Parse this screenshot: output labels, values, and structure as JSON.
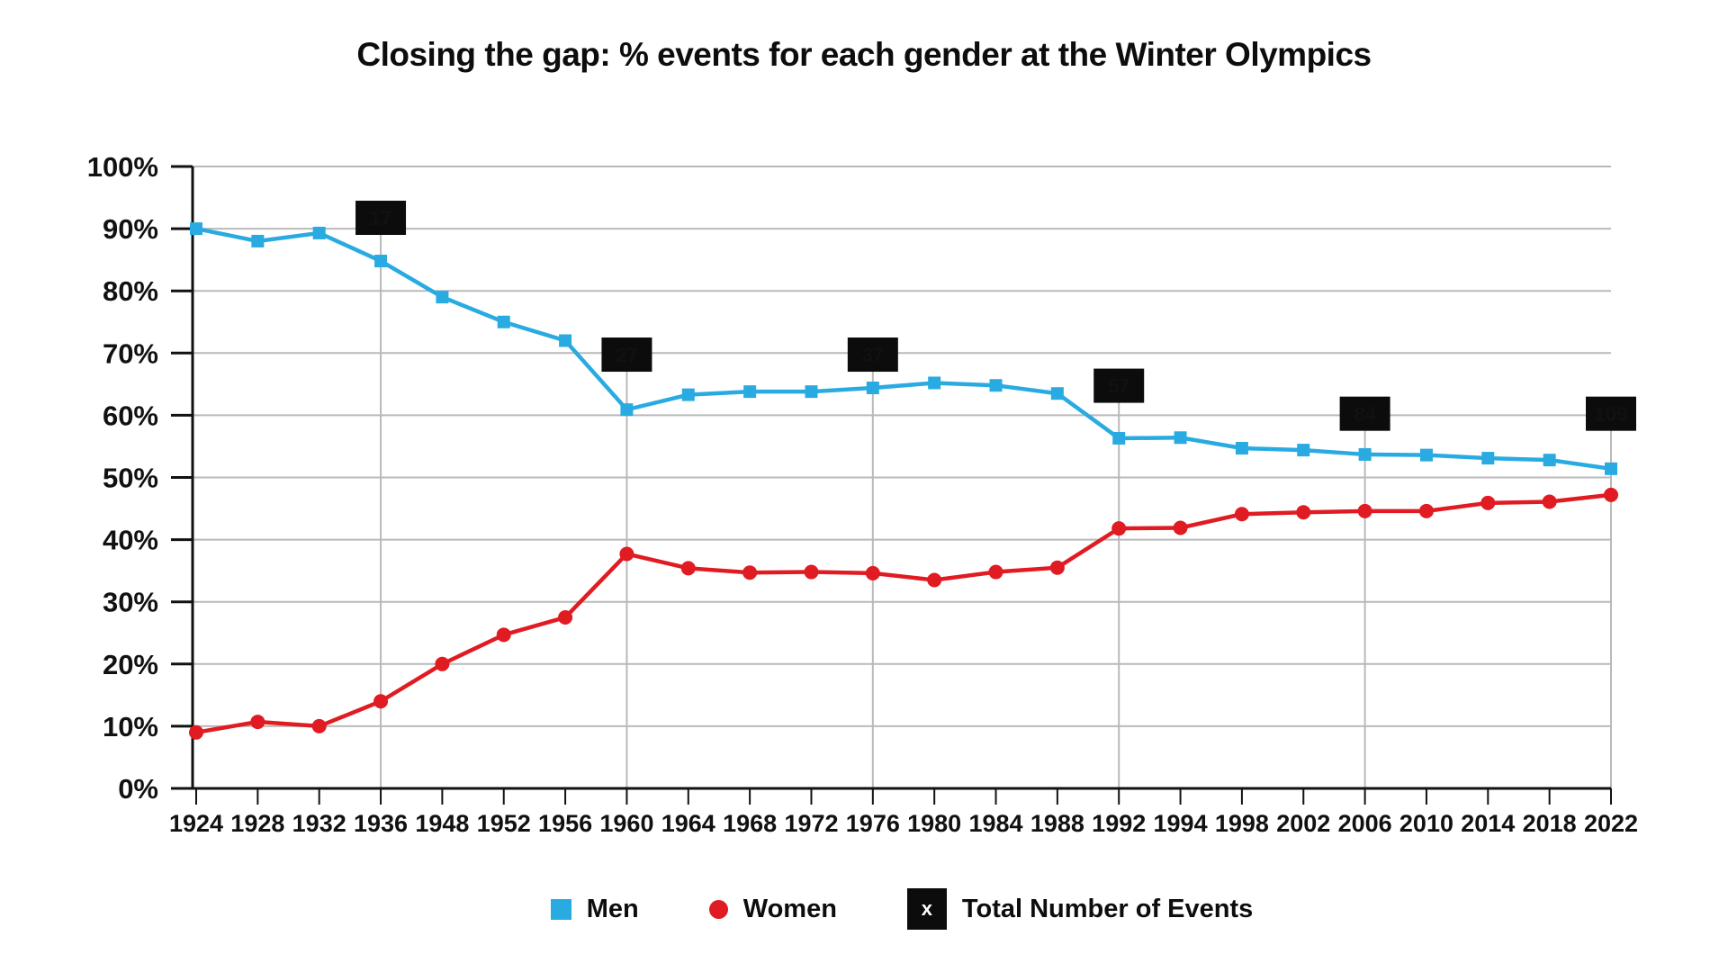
{
  "title": "Closing the gap: % events for each gender at the Winter Olympics",
  "legend": {
    "men_label": "Men",
    "women_label": "Women",
    "total_label": "Total Number of Events",
    "total_symbol": "x"
  },
  "colors": {
    "men": "#29ABE2",
    "women": "#E01B22",
    "annotation_bg": "#0c0c0c",
    "annotation_text": "#ffffff",
    "grid": "#b9b9b9",
    "axis": "#111111"
  },
  "chart_data": {
    "type": "line",
    "x": [
      1924,
      1928,
      1932,
      1936,
      1948,
      1952,
      1956,
      1960,
      1964,
      1968,
      1972,
      1976,
      1980,
      1984,
      1988,
      1992,
      1994,
      1998,
      2002,
      2006,
      2010,
      2014,
      2018,
      2022
    ],
    "series": [
      {
        "name": "Men",
        "marker": "square",
        "color": "#29ABE2",
        "values": [
          90.0,
          88.0,
          89.3,
          84.8,
          79.0,
          75.0,
          72.0,
          60.9,
          63.3,
          63.8,
          63.8,
          64.4,
          65.2,
          64.8,
          63.5,
          56.3,
          56.4,
          54.7,
          54.4,
          53.7,
          53.6,
          53.1,
          52.8,
          51.4
        ]
      },
      {
        "name": "Women",
        "marker": "circle",
        "color": "#E01B22",
        "values": [
          9.0,
          10.7,
          10.0,
          14.0,
          20.0,
          24.7,
          27.5,
          37.7,
          35.4,
          34.7,
          34.8,
          34.6,
          33.5,
          34.8,
          35.5,
          41.8,
          41.9,
          44.1,
          44.4,
          44.6,
          44.6,
          45.9,
          46.1,
          47.2
        ]
      }
    ],
    "annotations": [
      {
        "x": 1936,
        "label": "17",
        "box_bottom_pct": 89.0
      },
      {
        "x": 1960,
        "label": "27",
        "box_bottom_pct": 67.0
      },
      {
        "x": 1976,
        "label": "37",
        "box_bottom_pct": 67.0
      },
      {
        "x": 1992,
        "label": "57",
        "box_bottom_pct": 62.0
      },
      {
        "x": 2006,
        "label": "84",
        "box_bottom_pct": 57.5
      },
      {
        "x": 2022,
        "label": "109",
        "box_bottom_pct": 57.5
      }
    ],
    "ylim": [
      0,
      100
    ],
    "yticks": [
      "0%",
      "10%",
      "20%",
      "30%",
      "40%",
      "50%",
      "60%",
      "70%",
      "80%",
      "90%",
      "100%"
    ],
    "grid": "horizontal lines every 10%; vertical lines only at annotated years",
    "legend_position": "bottom-center",
    "xlabel": "",
    "ylabel": ""
  }
}
